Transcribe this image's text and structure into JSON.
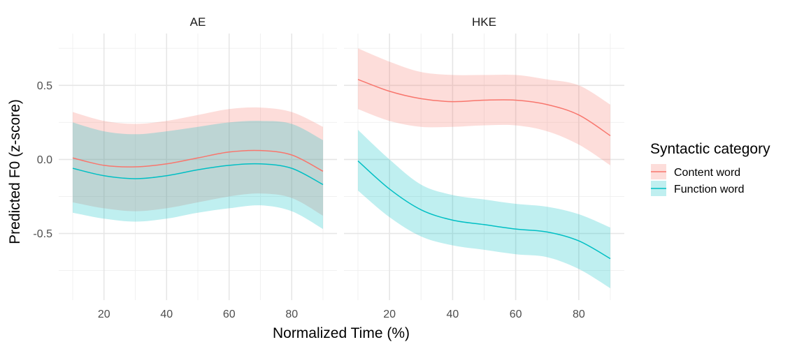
{
  "chart_data": {
    "type": "line",
    "xlabel": "Normalized Time (%)",
    "ylabel": "Predicted F0 (z-score)",
    "xlim": [
      10,
      90
    ],
    "ylim": [
      -0.95,
      0.85
    ],
    "x_ticks": [
      20,
      40,
      60,
      80
    ],
    "x_tick_labels": [
      "20",
      "40",
      "60",
      "80"
    ],
    "y_ticks": [
      0.5,
      0.0,
      -0.5
    ],
    "y_tick_labels": [
      "0.5",
      "0.0",
      "-0.5"
    ],
    "grid": true,
    "legend": {
      "title": "Syntactic category",
      "placement": "right",
      "entries": [
        "Content word",
        "Function word"
      ]
    },
    "colors": {
      "Content word": "#F8766D",
      "Function word": "#00BFC4"
    },
    "x": [
      10,
      20,
      30,
      40,
      50,
      60,
      70,
      80,
      90
    ],
    "panels": [
      {
        "label": "AE",
        "series": [
          {
            "name": "Content word",
            "values": [
              0.01,
              -0.04,
              -0.05,
              -0.03,
              0.01,
              0.05,
              0.06,
              0.03,
              -0.08
            ],
            "lower": [
              -0.29,
              -0.33,
              -0.35,
              -0.33,
              -0.29,
              -0.25,
              -0.23,
              -0.26,
              -0.38
            ],
            "upper": [
              0.32,
              0.26,
              0.24,
              0.26,
              0.3,
              0.34,
              0.35,
              0.32,
              0.22
            ]
          },
          {
            "name": "Function word",
            "values": [
              -0.06,
              -0.11,
              -0.13,
              -0.11,
              -0.07,
              -0.04,
              -0.03,
              -0.06,
              -0.17
            ],
            "lower": [
              -0.36,
              -0.4,
              -0.42,
              -0.4,
              -0.36,
              -0.33,
              -0.31,
              -0.35,
              -0.47
            ],
            "upper": [
              0.25,
              0.19,
              0.17,
              0.19,
              0.22,
              0.25,
              0.26,
              0.24,
              0.13
            ]
          }
        ]
      },
      {
        "label": "HKE",
        "series": [
          {
            "name": "Content word",
            "values": [
              0.54,
              0.46,
              0.41,
              0.39,
              0.4,
              0.4,
              0.37,
              0.3,
              0.16
            ],
            "lower": [
              0.34,
              0.26,
              0.22,
              0.22,
              0.23,
              0.23,
              0.19,
              0.1,
              -0.04
            ],
            "upper": [
              0.75,
              0.66,
              0.59,
              0.57,
              0.57,
              0.57,
              0.54,
              0.5,
              0.37
            ]
          },
          {
            "name": "Function word",
            "values": [
              -0.01,
              -0.2,
              -0.34,
              -0.41,
              -0.44,
              -0.47,
              -0.49,
              -0.55,
              -0.67
            ],
            "lower": [
              -0.21,
              -0.39,
              -0.52,
              -0.58,
              -0.61,
              -0.64,
              -0.66,
              -0.74,
              -0.87
            ],
            "upper": [
              0.2,
              0.0,
              -0.17,
              -0.24,
              -0.27,
              -0.3,
              -0.32,
              -0.37,
              -0.46
            ]
          }
        ]
      }
    ]
  }
}
